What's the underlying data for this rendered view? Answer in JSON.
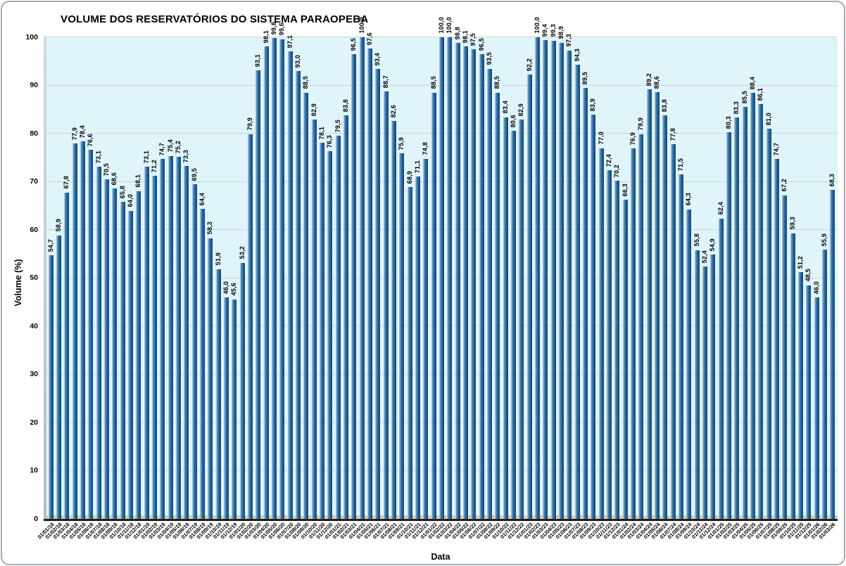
{
  "chart_data": {
    "type": "bar",
    "title": "VOLUME DOS RESERVATÓRIOS DO SISTEMA PARAOPEBA",
    "xlabel": "Data",
    "ylabel": "Volume (%)",
    "ylim": [
      0,
      100
    ],
    "yticks": [
      0,
      10,
      20,
      30,
      40,
      50,
      60,
      70,
      80,
      90,
      100
    ],
    "grid": "horizontal",
    "legend": "none",
    "categories": [
      "01/01/18",
      "01/02/18",
      "01/03/18",
      "01/04/18",
      "01/05/18",
      "01/06/18",
      "01/07/18",
      "01/08/18",
      "01/09/18",
      "01/10/18",
      "01/11/18",
      "01/12/18",
      "01/01/19",
      "01/02/19",
      "01/03/19",
      "01/04/19",
      "01/05/19",
      "01/06/19",
      "01/07/19",
      "01/08/19",
      "01/09/19",
      "01/10/19",
      "01/11/19",
      "01/12/19",
      "01/01/20",
      "01/02/20",
      "01/03/20",
      "01/04/20",
      "01/05/20",
      "01/06/20",
      "01/07/20",
      "01/08/20",
      "01/09/20",
      "01/10/20",
      "01/11/20",
      "01/12/20",
      "01/01/21",
      "01/02/21",
      "01/03/21",
      "01/04/21",
      "01/05/21",
      "01/06/21",
      "01/07/21",
      "01/08/21",
      "01/09/21",
      "01/10/21",
      "01/11/21",
      "01/12/21",
      "01/01/22",
      "01/02/22",
      "01/03/22",
      "01/04/22",
      "01/05/22",
      "01/06/22",
      "01/07/22",
      "01/08/22",
      "01/09/22",
      "01/10/22",
      "01/11/22",
      "01/12/22",
      "01/01/23",
      "01/02/23",
      "01/03/23",
      "01/04/23",
      "01/05/23",
      "01/06/23",
      "01/07/23",
      "01/08/23",
      "01/09/23",
      "01/10/23",
      "01/11/23",
      "01/12/23",
      "01/01/24",
      "01/02/24",
      "01/03/24",
      "01/04/24",
      "01/05/24",
      "01/06/24",
      "01/07/24",
      "01/08/24",
      "01/09/24",
      "01/10/24",
      "01/11/24",
      "01/12/24",
      "01/01/25",
      "01/02/25",
      "01/03/25",
      "01/04/25",
      "01/05/25",
      "01/06/25",
      "01/07/25",
      "01/08/25",
      "01/09/25",
      "01/10/25",
      "01/11/25",
      "01/12/25",
      "01/01/26",
      "01/02/26",
      "01/03/26"
    ],
    "values": [
      54.7,
      58.9,
      67.8,
      77.9,
      78.4,
      76.6,
      73.1,
      70.5,
      68.6,
      65.8,
      64.0,
      68.1,
      73.1,
      71.2,
      74.7,
      75.4,
      75.2,
      73.3,
      69.5,
      64.4,
      58.3,
      51.9,
      46.0,
      45.6,
      53.2,
      79.9,
      93.1,
      98.1,
      99.8,
      99.6,
      97.1,
      93.0,
      88.5,
      82.9,
      78.1,
      76.3,
      79.5,
      83.8,
      96.5,
      100.0,
      97.6,
      93.4,
      88.7,
      82.6,
      75.9,
      68.9,
      71.1,
      74.8,
      88.5,
      100.0,
      100.0,
      98.8,
      98.1,
      97.5,
      96.5,
      93.5,
      88.5,
      83.4,
      80.6,
      82.9,
      92.2,
      100.0,
      99.4,
      99.3,
      98.9,
      97.3,
      94.3,
      89.5,
      83.9,
      77.0,
      72.4,
      70.2,
      66.3,
      76.9,
      79.9,
      89.2,
      88.6,
      83.8,
      77.8,
      71.5,
      64.3,
      55.8,
      52.4,
      54.9,
      62.4,
      80.3,
      83.3,
      85.5,
      88.4,
      86.1,
      81.0,
      74.7,
      67.2,
      59.3,
      51.2,
      48.5,
      46.0,
      55.9,
      68.3
    ],
    "bar_labels": [
      "54,7",
      "58,9",
      "67,8",
      "77,9",
      "78,4",
      "76,6",
      "73,1",
      "70,5",
      "68,6",
      "65,8",
      "64,0",
      "68,1",
      "73,1",
      "71,2",
      "74,7",
      "75,4",
      "75,2",
      "73,3",
      "69,5",
      "64,4",
      "58,3",
      "51,9",
      "46,0",
      "45,6",
      "53,2",
      "79,9",
      "93,1",
      "98,1",
      "99,8",
      "99,6",
      "97,1",
      "93,0",
      "88,5",
      "82,9",
      "78,1",
      "76,3",
      "79,5",
      "83,8",
      "96,5",
      "100,0",
      "97,6",
      "93,4",
      "88,7",
      "82,6",
      "75,9",
      "68,9",
      "71,1",
      "74,8",
      "88,5",
      "100,0",
      "100,0",
      "98,8",
      "98,1",
      "97,5",
      "96,5",
      "93,5",
      "88,5",
      "83,4",
      "80,6",
      "82,9",
      "92,2",
      "100,0",
      "99,4",
      "99,3",
      "98,9",
      "97,3",
      "94,3",
      "89,5",
      "83,9",
      "77,0",
      "72,4",
      "70,2",
      "66,3",
      "76,9",
      "79,9",
      "89,2",
      "88,6",
      "83,8",
      "77,8",
      "71,5",
      "64,3",
      "55,8",
      "52,4",
      "54,9",
      "62,4",
      "80,3",
      "83,3",
      "85,5",
      "88,4",
      "86,1",
      "81,0",
      "74,7",
      "67,2",
      "59,3",
      "51,2",
      "48,5",
      "46,0",
      "55,9",
      "68,3"
    ],
    "colors": {
      "bar_mid": "#2E74B5",
      "bar_highlight": "#C9DFF1",
      "bar_shadow": "#173C5F",
      "plot_bg": "#E0F5FA",
      "side_wall": "#BCD3D7",
      "floor": "#D9CFA2",
      "axis_line": "#1F1F1F",
      "gridline": "#CBD5D7",
      "chart_border": "#A6ADB0",
      "text": "#000000"
    }
  }
}
